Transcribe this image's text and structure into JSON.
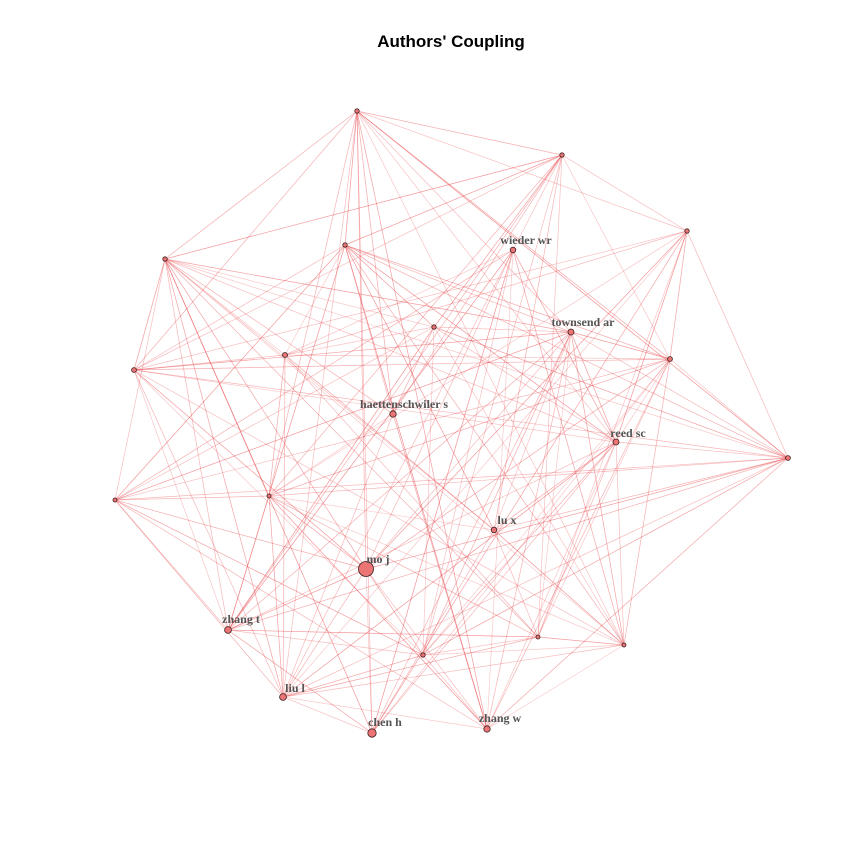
{
  "title": "Authors' Coupling",
  "colors": {
    "edge": "#e8454a",
    "node_fill": "#ec7474",
    "node_stroke": "#3a2020",
    "label": "#555555",
    "title": "#000000"
  },
  "nodes": [
    {
      "id": "n1",
      "label": ""
    },
    {
      "id": "n2",
      "label": ""
    },
    {
      "id": "n3",
      "label": ""
    },
    {
      "id": "n4",
      "label": ""
    },
    {
      "id": "n5",
      "label": ""
    },
    {
      "id": "n6",
      "label": "wieder wr"
    },
    {
      "id": "n7",
      "label": "townsend ar"
    },
    {
      "id": "n8",
      "label": ""
    },
    {
      "id": "n9",
      "label": ""
    },
    {
      "id": "n10",
      "label": ""
    },
    {
      "id": "n11",
      "label": ""
    },
    {
      "id": "n12",
      "label": "haettenschwiler s"
    },
    {
      "id": "n13",
      "label": "reed sc"
    },
    {
      "id": "n14",
      "label": ""
    },
    {
      "id": "n15",
      "label": ""
    },
    {
      "id": "n16",
      "label": ""
    },
    {
      "id": "n17",
      "label": "lu x"
    },
    {
      "id": "n18",
      "label": "mo j"
    },
    {
      "id": "n19",
      "label": "zhang t"
    },
    {
      "id": "n20",
      "label": ""
    },
    {
      "id": "n21",
      "label": ""
    },
    {
      "id": "n22",
      "label": ""
    },
    {
      "id": "n23",
      "label": "liu l"
    },
    {
      "id": "n24",
      "label": "chen h"
    },
    {
      "id": "n25",
      "label": "zhang w"
    }
  ]
}
